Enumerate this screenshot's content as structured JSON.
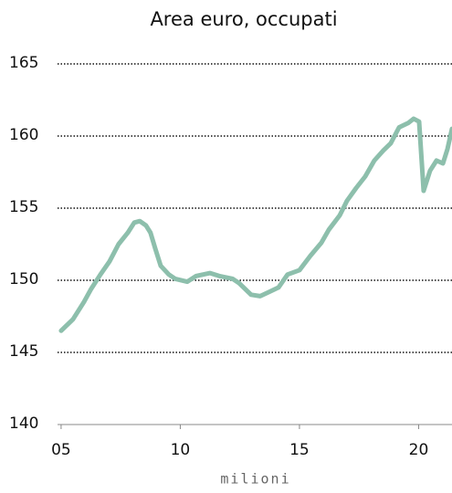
{
  "chart_data": {
    "type": "line",
    "title": "Area euro, occupati",
    "x_label": "milioni",
    "x": [
      2005.0,
      2005.5,
      2005.96,
      2006.26,
      2006.65,
      2007.03,
      2007.41,
      2007.8,
      2008.07,
      2008.3,
      2008.56,
      2008.75,
      2008.95,
      2009.18,
      2009.52,
      2009.79,
      2010.29,
      2010.67,
      2011.25,
      2011.63,
      2012.2,
      2012.47,
      2012.97,
      2013.35,
      2013.74,
      2014.12,
      2014.5,
      2015.0,
      2015.46,
      2015.92,
      2016.23,
      2016.69,
      2016.99,
      2017.38,
      2017.76,
      2018.14,
      2018.52,
      2018.83,
      2019.18,
      2019.56,
      2019.79,
      2020.02,
      2020.21,
      2020.48,
      2020.75,
      2021.02,
      2021.21,
      2021.4
    ],
    "series": [
      {
        "name": "occupati",
        "color": "#8dbfac",
        "values": [
          146.5,
          147.3,
          148.5,
          149.4,
          150.4,
          151.3,
          152.5,
          153.3,
          154.0,
          154.1,
          153.8,
          153.3,
          152.2,
          151.0,
          150.4,
          150.1,
          149.9,
          150.3,
          150.5,
          150.3,
          150.1,
          149.8,
          149.0,
          148.9,
          149.2,
          149.5,
          150.4,
          150.7,
          151.7,
          152.6,
          153.5,
          154.5,
          155.5,
          156.4,
          157.2,
          158.3,
          159.0,
          159.5,
          160.6,
          160.9,
          161.2,
          161.0,
          156.2,
          157.6,
          158.3,
          158.1,
          159.1,
          160.5
        ]
      }
    ],
    "xlim": [
      2004.85,
      2021.4
    ],
    "xticks": [
      {
        "value": 2005,
        "label": "05"
      },
      {
        "value": 2010,
        "label": "10"
      },
      {
        "value": 2015,
        "label": "15"
      },
      {
        "value": 2020,
        "label": "20"
      }
    ],
    "ylim": [
      140,
      165
    ],
    "yticks": [
      140,
      145,
      150,
      155,
      160,
      165
    ],
    "grid": true
  }
}
